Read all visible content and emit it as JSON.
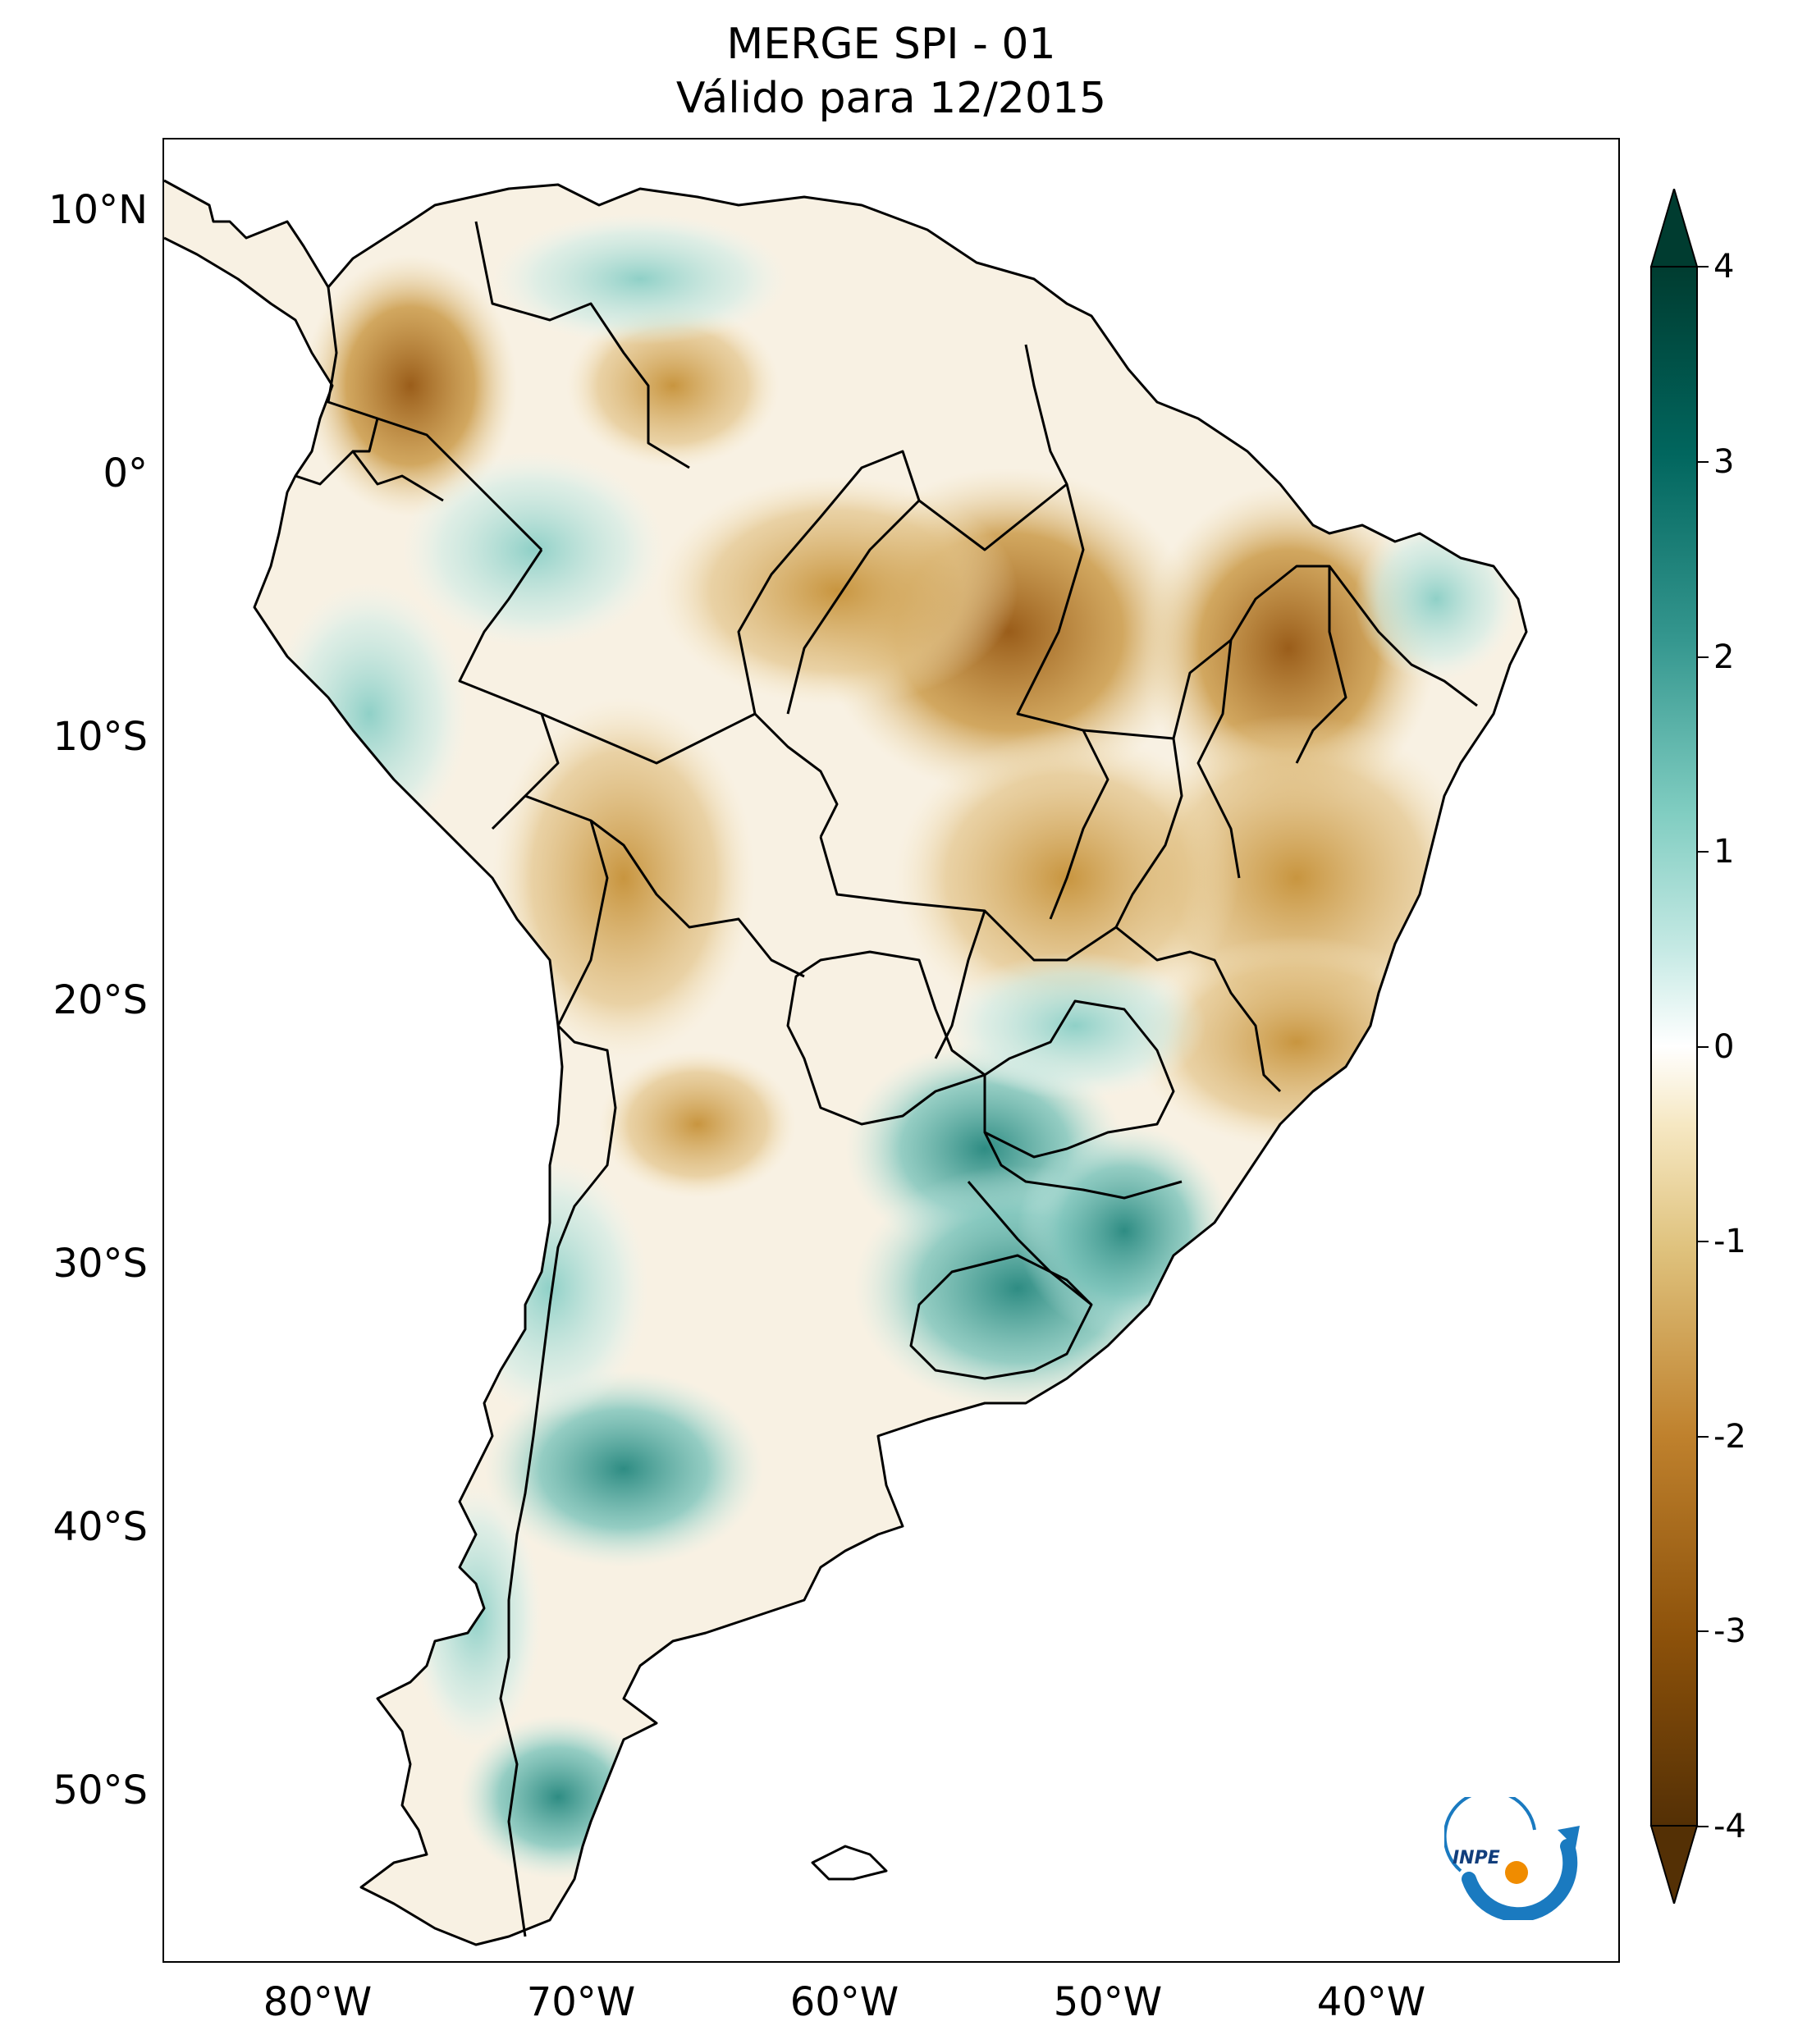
{
  "title": {
    "line1": "MERGE   SPI - 01",
    "line2": "Válido para 12/2015"
  },
  "axes": {
    "lat_labels": [
      "10°N",
      "0°",
      "10°S",
      "20°S",
      "30°S",
      "40°S",
      "50°S"
    ],
    "lon_labels": [
      "80°W",
      "70°W",
      "60°W",
      "50°W",
      "40°W"
    ]
  },
  "colorbar": {
    "ticks": [
      "4",
      "3",
      "2",
      "1",
      "0",
      "-1",
      "-2",
      "-3",
      "-4"
    ],
    "min": -4,
    "max": 4,
    "colors": {
      "very_dry": "#543005",
      "dry": "#8c510a",
      "mod_dry": "#c8953f",
      "slight_dry": "#f5e6c4",
      "neutral": "#ffffff",
      "slight_wet": "#c7eae5",
      "mod_wet": "#5ab4ac",
      "wet": "#01665e",
      "very_wet": "#003c30"
    }
  },
  "logo": {
    "text": "INPE"
  },
  "colors": {
    "dry_core": "#9a5d1a",
    "dry_mid": "#c8953f",
    "dry_light": "#ecd7a8",
    "wet_light": "#cdebe6",
    "wet_mid": "#7cc4bb",
    "wet_core": "#2e8c83",
    "border": "#000000"
  }
}
